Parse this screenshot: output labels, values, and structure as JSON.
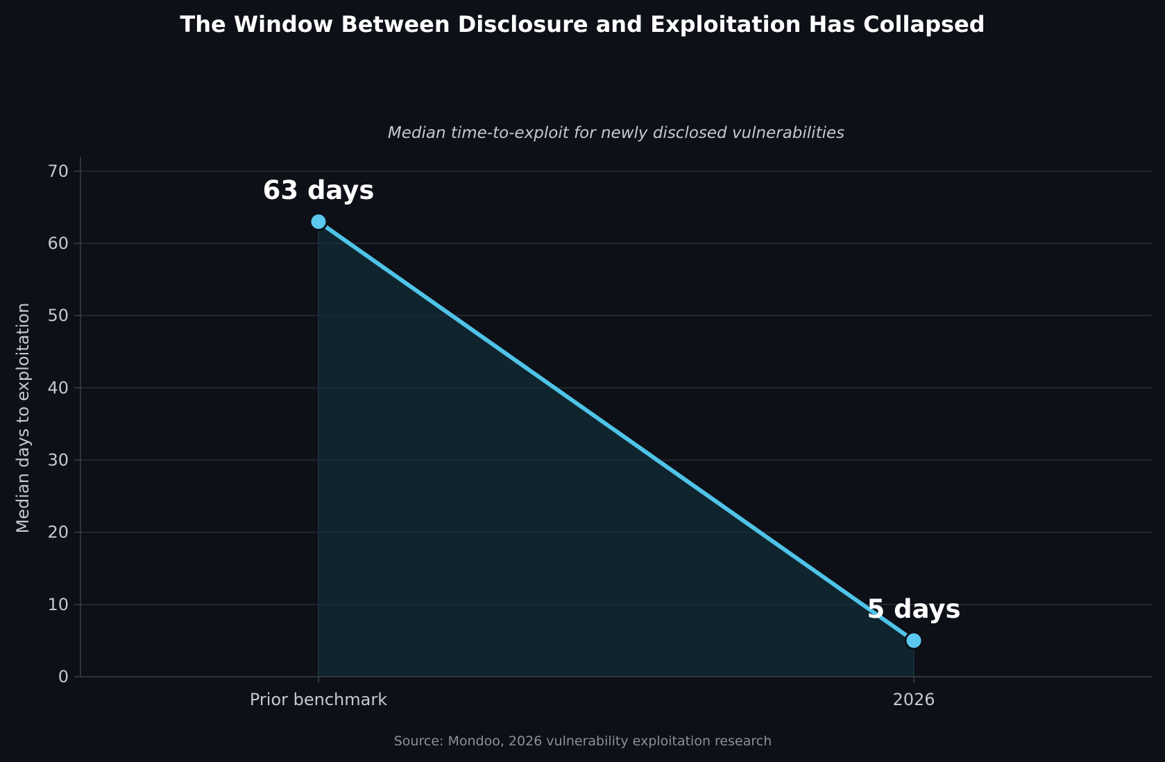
{
  "chart_data": {
    "type": "line",
    "title": "The Window Between Disclosure and Exploitation Has Collapsed",
    "subtitle": "Median time-to-exploit for newly disclosed vulnerabilities",
    "xlabel": "",
    "ylabel": "Median days to exploitation",
    "categories": [
      "Prior benchmark",
      "2026"
    ],
    "series": [
      {
        "values": [
          63,
          5
        ]
      }
    ],
    "data_labels": [
      "63 days",
      "5 days"
    ],
    "ylim": [
      0,
      72
    ],
    "yticks": [
      0,
      10,
      20,
      30,
      40,
      50,
      60,
      70
    ],
    "grid": true,
    "area_fill": true,
    "source": "Source: Mondoo, 2026 vulnerability exploitation research",
    "colors": {
      "background": "#0d1017",
      "line": "#4fc3e8",
      "marker": "#5bc8f0",
      "marker_edge": "#0d1017",
      "area": "#122e38",
      "grid": "#2a2f38",
      "axis": "#3a3f48",
      "text": "#c4c8d2"
    }
  }
}
